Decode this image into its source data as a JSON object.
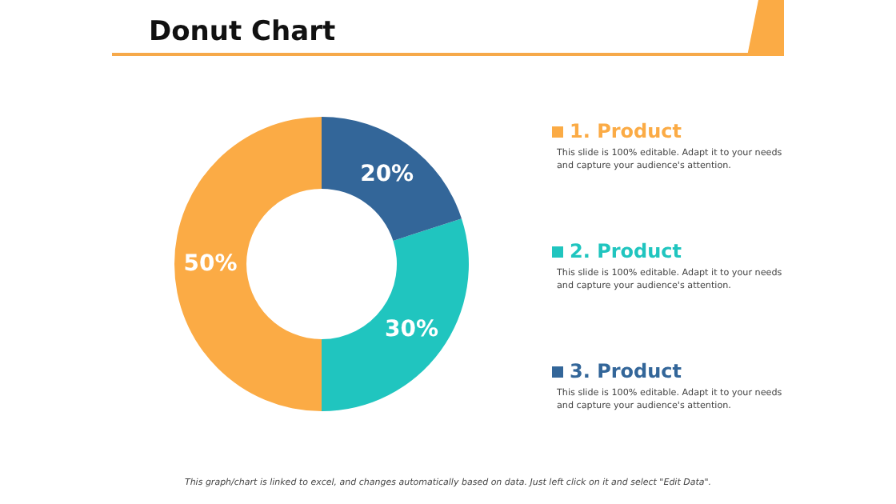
{
  "chart_data": {
    "type": "donut",
    "title": "Donut Chart",
    "categories": [
      "1. Product",
      "2. Product",
      "3. Product"
    ],
    "values": [
      50,
      30,
      20
    ],
    "colors": [
      "#fbab45",
      "#20c5bf",
      "#336699"
    ],
    "value_labels": [
      "50%",
      "30%",
      "20%"
    ],
    "legend": "right",
    "annotations": [
      "This slide is 100% editable. Adapt it to your needs and capture your audience's attention.",
      "This slide is 100% editable. Adapt it to your needs and capture your audience's attention.",
      "This slide is 100% editable. Adapt it to your needs and capture your audience's attention.",
      "This graph/chart is linked to excel, and changes automatically based on data. Just left click on it and select \"Edit Data\"."
    ]
  }
}
